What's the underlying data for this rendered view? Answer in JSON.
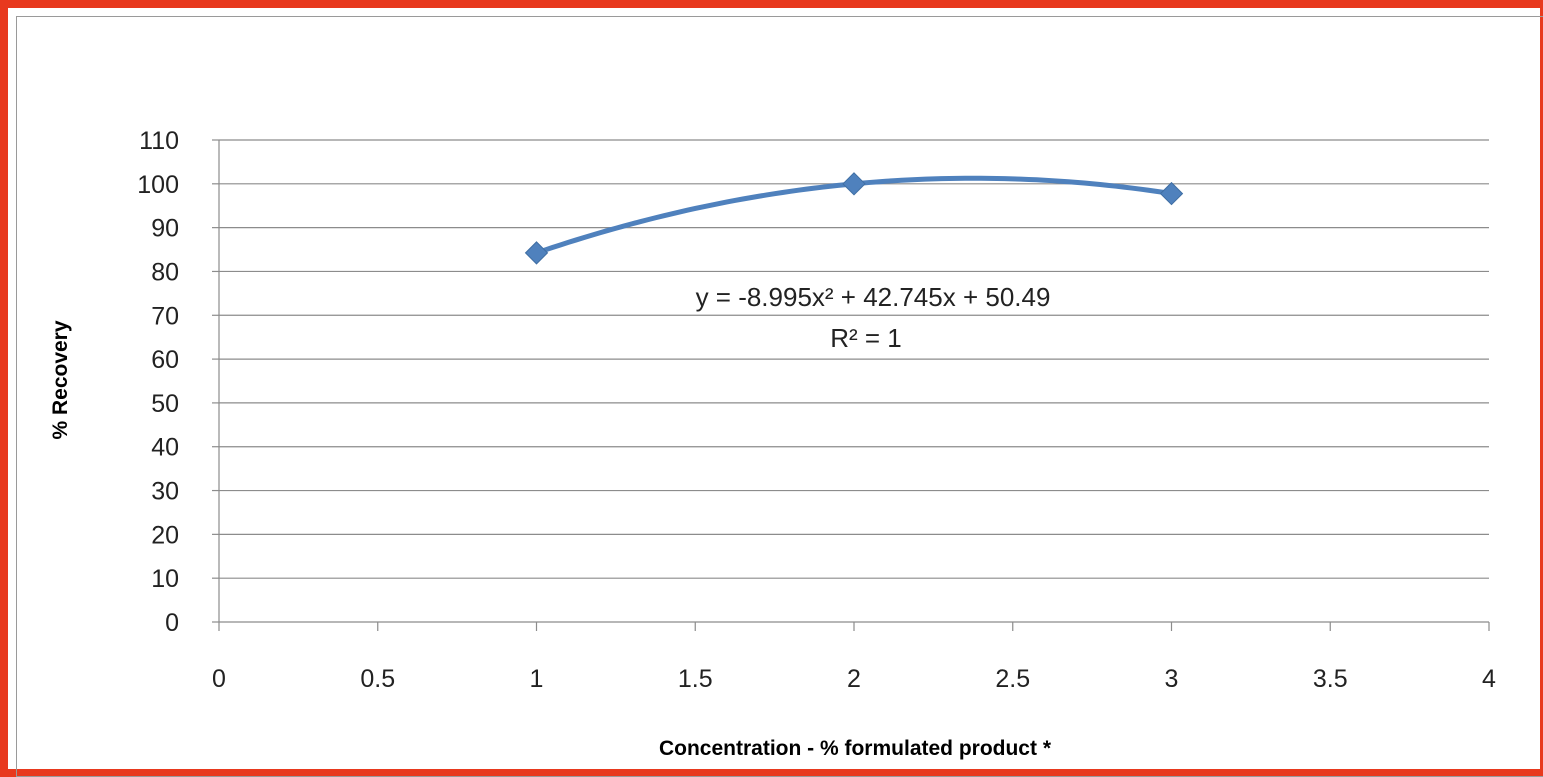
{
  "chart_data": {
    "type": "scatter",
    "title": "",
    "xlabel": "Concentration - % formulated product *",
    "ylabel": "% Recovery",
    "xlim": [
      0,
      4
    ],
    "ylim": [
      0,
      110
    ],
    "x_ticks": [
      0,
      0.5,
      1,
      1.5,
      2,
      2.5,
      3,
      3.5,
      4
    ],
    "x_tick_labels": [
      "0",
      "0.5",
      "1",
      "1.5",
      "2",
      "2.5",
      "3",
      "3.5",
      "4"
    ],
    "y_ticks": [
      0,
      10,
      20,
      30,
      40,
      50,
      60,
      70,
      80,
      90,
      100,
      110
    ],
    "y_tick_labels": [
      "0",
      "10",
      "20",
      "30",
      "40",
      "50",
      "60",
      "70",
      "80",
      "90",
      "100",
      "110"
    ],
    "grid": {
      "horizontal": true,
      "vertical": false
    },
    "legend": "none",
    "series": [
      {
        "x": [
          1,
          2,
          3
        ],
        "y": [
          84.24,
          100,
          97.77
        ],
        "marker": "diamond",
        "color": "#4f81bd"
      }
    ],
    "trendline": {
      "type": "polynomial",
      "order": 2,
      "coefficients": [
        -8.995,
        42.745,
        50.49
      ],
      "x_range": [
        1,
        3
      ],
      "color": "#4f81bd",
      "equation_label": "y = -8.995x² + 42.745x + 50.49",
      "r_squared_label": "R² = 1"
    }
  },
  "colors": {
    "frame_border": "#e8391e",
    "gridline": "#8c8c8c",
    "series": "#4f81bd"
  }
}
